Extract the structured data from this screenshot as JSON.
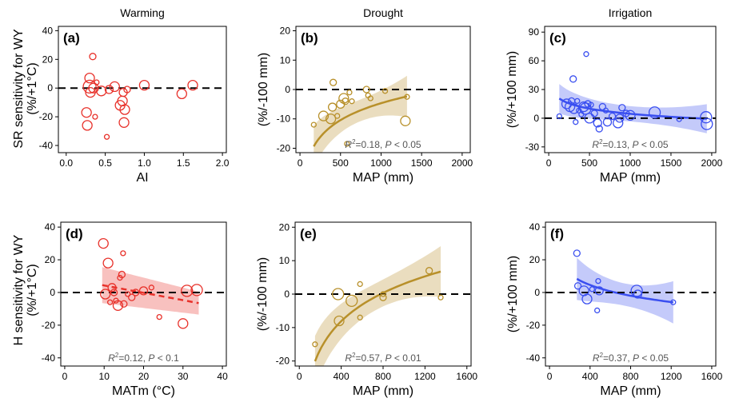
{
  "column_titles": [
    "Warming",
    "Drought",
    "Irrigation"
  ],
  "row_ylabels": [
    {
      "line1": "SR sensitivity for WY",
      "line2": "(%/+1°C)"
    },
    {
      "line1": "H sensitivity for WY",
      "line2": "(%/+1°C)"
    }
  ],
  "colors": {
    "warming": "#e8312a",
    "drought": "#b8902a",
    "irrigation": "#3a4ff0"
  },
  "chart_data": [
    {
      "id": "a",
      "tag": "(a)",
      "type": "scatter",
      "treatment": "warming",
      "xlabel": "AI",
      "ylabel": "",
      "xlim": [
        -0.1,
        2.05
      ],
      "ylim": [
        -45,
        43
      ],
      "xticks": [
        0.0,
        0.5,
        1.0,
        1.5,
        2.0
      ],
      "xtick_labels": [
        "0.0",
        "0.5",
        "1.0",
        "1.5",
        "2.0"
      ],
      "yticks": [
        -40,
        -20,
        0,
        20,
        40
      ],
      "ytick_labels": [
        "-40",
        "-20",
        "0",
        "20",
        "40"
      ],
      "points": [
        {
          "x": 0.26,
          "y": -17,
          "s": 6
        },
        {
          "x": 0.27,
          "y": -26,
          "s": 6
        },
        {
          "x": 0.3,
          "y": 7,
          "s": 6
        },
        {
          "x": 0.3,
          "y": 1,
          "s": 8
        },
        {
          "x": 0.31,
          "y": -3,
          "s": 6
        },
        {
          "x": 0.34,
          "y": 22,
          "s": 4
        },
        {
          "x": 0.35,
          "y": 0,
          "s": 6
        },
        {
          "x": 0.37,
          "y": -20,
          "s": 3
        },
        {
          "x": 0.39,
          "y": 4,
          "s": 3
        },
        {
          "x": 0.45,
          "y": -2,
          "s": 6
        },
        {
          "x": 0.52,
          "y": -34,
          "s": 3
        },
        {
          "x": 0.55,
          "y": -1,
          "s": 5
        },
        {
          "x": 0.62,
          "y": 1,
          "s": 6
        },
        {
          "x": 0.69,
          "y": -12,
          "s": 6
        },
        {
          "x": 0.72,
          "y": -9,
          "s": 6
        },
        {
          "x": 0.73,
          "y": -3,
          "s": 5
        },
        {
          "x": 0.74,
          "y": -24,
          "s": 6
        },
        {
          "x": 0.75,
          "y": -15,
          "s": 6
        },
        {
          "x": 0.78,
          "y": -1,
          "s": 4
        },
        {
          "x": 1.0,
          "y": 2,
          "s": 6
        },
        {
          "x": 1.48,
          "y": -4,
          "s": 6
        },
        {
          "x": 1.62,
          "y": 2,
          "s": 6
        }
      ],
      "fit": null,
      "stats": null
    },
    {
      "id": "b",
      "tag": "(b)",
      "type": "scatter",
      "treatment": "drought",
      "xlabel": "MAP (mm)",
      "ylabel": "(%/-100 mm)",
      "xlim": [
        -50,
        2100
      ],
      "ylim": [
        -21.5,
        21.5
      ],
      "xticks": [
        0,
        500,
        1000,
        1500,
        2000
      ],
      "xtick_labels": [
        "0",
        "500",
        "1000",
        "1500",
        "2000"
      ],
      "yticks": [
        -20,
        -10,
        0,
        10,
        20
      ],
      "ytick_labels": [
        "-20",
        "-10",
        "0",
        "10",
        "20"
      ],
      "points": [
        {
          "x": 170,
          "y": -12,
          "s": 3
        },
        {
          "x": 290,
          "y": -9,
          "s": 6
        },
        {
          "x": 380,
          "y": -10,
          "s": 6
        },
        {
          "x": 400,
          "y": -6,
          "s": 5
        },
        {
          "x": 410,
          "y": 2.4,
          "s": 4
        },
        {
          "x": 460,
          "y": -9,
          "s": 3
        },
        {
          "x": 500,
          "y": -5,
          "s": 5
        },
        {
          "x": 540,
          "y": -3,
          "s": 6
        },
        {
          "x": 560,
          "y": -4,
          "s": 4
        },
        {
          "x": 580,
          "y": -18.5,
          "s": 3
        },
        {
          "x": 610,
          "y": -1,
          "s": 3
        },
        {
          "x": 640,
          "y": -4,
          "s": 3
        },
        {
          "x": 820,
          "y": 0,
          "s": 4
        },
        {
          "x": 840,
          "y": -2,
          "s": 3
        },
        {
          "x": 870,
          "y": -3,
          "s": 3
        },
        {
          "x": 1050,
          "y": -0.5,
          "s": 3
        },
        {
          "x": 1300,
          "y": -10.7,
          "s": 6
        },
        {
          "x": 1320,
          "y": -2.5,
          "s": 3
        }
      ],
      "fit": {
        "curve": "log",
        "a": -62.0,
        "b": 8.3,
        "x0": 170,
        "x1": 1320,
        "band": 3.7,
        "dashed": false
      },
      "stats": {
        "r2_text": "=0.18, ",
        "p_text": " < 0.05"
      }
    },
    {
      "id": "c",
      "tag": "(c)",
      "type": "scatter",
      "treatment": "irrigation",
      "xlabel": "MAP (mm)",
      "ylabel": "(%/+100 mm)",
      "xlim": [
        -50,
        2050
      ],
      "ylim": [
        -36,
        96
      ],
      "xticks": [
        0,
        500,
        1000,
        1500,
        2000
      ],
      "xtick_labels": [
        "0",
        "500",
        "1000",
        "1500",
        "2000"
      ],
      "yticks": [
        -30,
        0,
        30,
        60,
        90
      ],
      "ytick_labels": [
        "-30",
        "0",
        "30",
        "60",
        "90"
      ],
      "points": [
        {
          "x": 130,
          "y": 2,
          "s": 3
        },
        {
          "x": 220,
          "y": 15,
          "s": 6
        },
        {
          "x": 260,
          "y": 12,
          "s": 6
        },
        {
          "x": 280,
          "y": 18,
          "s": 4
        },
        {
          "x": 300,
          "y": 41,
          "s": 4
        },
        {
          "x": 310,
          "y": 10,
          "s": 6
        },
        {
          "x": 330,
          "y": -4,
          "s": 3
        },
        {
          "x": 350,
          "y": 18,
          "s": 3
        },
        {
          "x": 370,
          "y": 8,
          "s": 3
        },
        {
          "x": 400,
          "y": 4,
          "s": 3
        },
        {
          "x": 430,
          "y": 12,
          "s": 6
        },
        {
          "x": 450,
          "y": 10,
          "s": 7
        },
        {
          "x": 460,
          "y": 67,
          "s": 3
        },
        {
          "x": 480,
          "y": 15,
          "s": 4
        },
        {
          "x": 500,
          "y": 0,
          "s": 6
        },
        {
          "x": 520,
          "y": 14,
          "s": 3
        },
        {
          "x": 560,
          "y": 5,
          "s": 4
        },
        {
          "x": 600,
          "y": -5,
          "s": 5
        },
        {
          "x": 620,
          "y": -11,
          "s": 4
        },
        {
          "x": 660,
          "y": 12,
          "s": 4
        },
        {
          "x": 700,
          "y": 8,
          "s": 3
        },
        {
          "x": 720,
          "y": -4,
          "s": 5
        },
        {
          "x": 780,
          "y": 2,
          "s": 4
        },
        {
          "x": 850,
          "y": -5,
          "s": 6
        },
        {
          "x": 870,
          "y": 0,
          "s": 5
        },
        {
          "x": 900,
          "y": 11,
          "s": 4
        },
        {
          "x": 950,
          "y": 5,
          "s": 4
        },
        {
          "x": 1000,
          "y": 3,
          "s": 6
        },
        {
          "x": 1300,
          "y": 6,
          "s": 7
        },
        {
          "x": 1600,
          "y": -1,
          "s": 3
        },
        {
          "x": 1930,
          "y": 1,
          "s": 7
        },
        {
          "x": 1940,
          "y": -6,
          "s": 7
        }
      ],
      "fit": {
        "curve": "log",
        "a": 58.5,
        "b": -7.8,
        "x0": 130,
        "x1": 1940,
        "band": 8,
        "dashed": false
      },
      "stats": {
        "r2_text": "=0.13, ",
        "p_text": " < 0.05"
      }
    },
    {
      "id": "d",
      "tag": "(d)",
      "type": "scatter",
      "treatment": "warming",
      "xlabel": "MATm (°C)",
      "ylabel": "",
      "xlim": [
        -1,
        41
      ],
      "ylim": [
        -45,
        43
      ],
      "xticks": [
        0,
        10,
        20,
        30,
        40
      ],
      "xtick_labels": [
        "0",
        "10",
        "20",
        "30",
        "40"
      ],
      "yticks": [
        -40,
        -20,
        0,
        20,
        40
      ],
      "ytick_labels": [
        "-40",
        "-20",
        "0",
        "20",
        "40"
      ],
      "points": [
        {
          "x": 9.8,
          "y": 30,
          "s": 6
        },
        {
          "x": 10.3,
          "y": -1,
          "s": 6
        },
        {
          "x": 11,
          "y": 18,
          "s": 6
        },
        {
          "x": 11.5,
          "y": -6,
          "s": 3
        },
        {
          "x": 12,
          "y": 3,
          "s": 5
        },
        {
          "x": 12.5,
          "y": 0,
          "s": 4
        },
        {
          "x": 13,
          "y": -5,
          "s": 3
        },
        {
          "x": 13.5,
          "y": -8,
          "s": 6
        },
        {
          "x": 14,
          "y": 9,
          "s": 3
        },
        {
          "x": 14.5,
          "y": 11,
          "s": 4
        },
        {
          "x": 14.8,
          "y": 24,
          "s": 3
        },
        {
          "x": 15,
          "y": -7,
          "s": 4
        },
        {
          "x": 16,
          "y": -1,
          "s": 3
        },
        {
          "x": 17,
          "y": -3,
          "s": 4
        },
        {
          "x": 18,
          "y": 0,
          "s": 4
        },
        {
          "x": 20,
          "y": 1,
          "s": 5
        },
        {
          "x": 22,
          "y": 3,
          "s": 3
        },
        {
          "x": 24,
          "y": -15,
          "s": 3
        },
        {
          "x": 30,
          "y": -19,
          "s": 6
        },
        {
          "x": 31,
          "y": 1,
          "s": 7
        },
        {
          "x": 33.5,
          "y": 1.5,
          "s": 7
        }
      ],
      "fit": {
        "curve": "linear",
        "a": 8.8,
        "b": -0.45,
        "x0": 9.5,
        "x1": 34,
        "band_left": 11,
        "band_right": 7,
        "dashed": true
      },
      "stats": {
        "r2_text": "=0.12, ",
        "p_text": " < 0.1"
      }
    },
    {
      "id": "e",
      "tag": "(e)",
      "type": "scatter",
      "treatment": "drought",
      "xlabel": "MAP (mm)",
      "ylabel": "(%/-100 mm)",
      "xlim": [
        -40,
        1640
      ],
      "ylim": [
        -21.5,
        21.5
      ],
      "xticks": [
        0,
        400,
        800,
        1200,
        1600
      ],
      "xtick_labels": [
        "0",
        "400",
        "800",
        "1200",
        "1600"
      ],
      "yticks": [
        -20,
        -10,
        0,
        10,
        20
      ],
      "ytick_labels": [
        "-20",
        "-10",
        "0",
        "10",
        "20"
      ],
      "points": [
        {
          "x": 150,
          "y": -15,
          "s": 3
        },
        {
          "x": 370,
          "y": 0,
          "s": 7
        },
        {
          "x": 380,
          "y": -8,
          "s": 6
        },
        {
          "x": 500,
          "y": -2,
          "s": 7
        },
        {
          "x": 580,
          "y": -7,
          "s": 3
        },
        {
          "x": 580,
          "y": 3,
          "s": 3
        },
        {
          "x": 800,
          "y": -1,
          "s": 4
        },
        {
          "x": 800,
          "y": 0,
          "s": 3
        },
        {
          "x": 1240,
          "y": 7,
          "s": 4
        },
        {
          "x": 1350,
          "y": -1,
          "s": 3
        }
      ],
      "fit": {
        "curve": "log",
        "a": -81.2,
        "b": 12.2,
        "x0": 150,
        "x1": 1350,
        "band": 4,
        "dashed": false
      },
      "stats": {
        "r2_text": "=0.57, ",
        "p_text": " < 0.01"
      }
    },
    {
      "id": "f",
      "tag": "(f)",
      "type": "scatter",
      "treatment": "irrigation",
      "xlabel": "MAP (mm)",
      "ylabel": "(%/+100 mm)",
      "xlim": [
        -40,
        1640
      ],
      "ylim": [
        -45,
        43
      ],
      "xticks": [
        0,
        400,
        800,
        1200,
        1600
      ],
      "xtick_labels": [
        "0",
        "400",
        "800",
        "1200",
        "1600"
      ],
      "yticks": [
        -40,
        -20,
        0,
        20,
        40
      ],
      "ytick_labels": [
        "-40",
        "-20",
        "0",
        "20",
        "40"
      ],
      "points": [
        {
          "x": 270,
          "y": 24,
          "s": 4
        },
        {
          "x": 280,
          "y": 4,
          "s": 4
        },
        {
          "x": 340,
          "y": 1,
          "s": 6
        },
        {
          "x": 370,
          "y": -4,
          "s": 6
        },
        {
          "x": 420,
          "y": 2,
          "s": 3
        },
        {
          "x": 470,
          "y": -11,
          "s": 3
        },
        {
          "x": 480,
          "y": 7,
          "s": 3
        },
        {
          "x": 490,
          "y": 1,
          "s": 5
        },
        {
          "x": 860,
          "y": 1,
          "s": 7
        },
        {
          "x": 870,
          "y": -1,
          "s": 5
        },
        {
          "x": 1220,
          "y": -6,
          "s": 3
        }
      ],
      "fit": {
        "curve": "log",
        "a": 61.5,
        "b": -9.5,
        "x0": 270,
        "x1": 1220,
        "band": 6.8,
        "dashed": false
      },
      "stats": {
        "r2_text": "=0.37, ",
        "p_text": " < 0.05"
      }
    }
  ]
}
